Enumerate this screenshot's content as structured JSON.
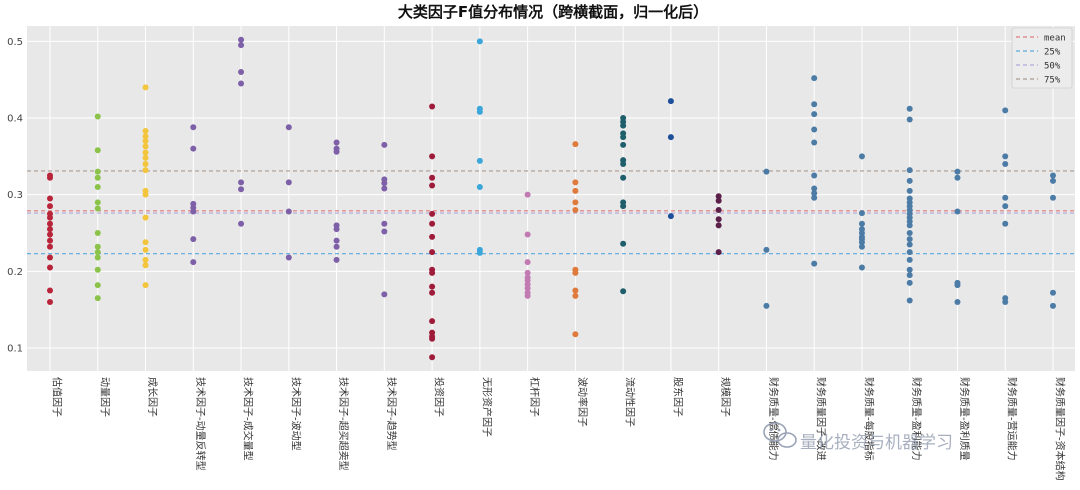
{
  "chart_data": {
    "type": "scatter",
    "title": "大类因子F值分布情况（跨横截面，归一化后）",
    "xlabel": "",
    "ylabel": "",
    "ylim": [
      0.07,
      0.52
    ],
    "yticks": [
      0.1,
      0.2,
      0.3,
      0.4,
      0.5
    ],
    "grid": true,
    "legend_position": "top-right",
    "reference_lines": [
      {
        "name": "mean",
        "value": 0.279,
        "color": "#e07b7b"
      },
      {
        "name": "25%",
        "value": 0.223,
        "color": "#5aa9dc"
      },
      {
        "name": "50%",
        "value": 0.276,
        "color": "#b0a8d8"
      },
      {
        "name": "75%",
        "value": 0.331,
        "color": "#a89a90"
      }
    ],
    "categories": [
      {
        "label": "估值因子",
        "color": "#b8253a",
        "values": [
          0.325,
          0.322,
          0.295,
          0.285,
          0.275,
          0.27,
          0.262,
          0.255,
          0.248,
          0.24,
          0.232,
          0.218,
          0.205,
          0.175,
          0.16
        ]
      },
      {
        "label": "动量因子",
        "color": "#8bc34a",
        "values": [
          0.402,
          0.358,
          0.33,
          0.322,
          0.31,
          0.29,
          0.282,
          0.25,
          0.232,
          0.225,
          0.218,
          0.202,
          0.182,
          0.165
        ]
      },
      {
        "label": "成长因子",
        "color": "#f2c53d",
        "values": [
          0.44,
          0.383,
          0.376,
          0.37,
          0.363,
          0.355,
          0.348,
          0.34,
          0.332,
          0.305,
          0.3,
          0.27,
          0.238,
          0.228,
          0.215,
          0.208,
          0.182
        ]
      },
      {
        "label": "技术因子-动量反转型",
        "color": "#7e60a8",
        "values": [
          0.388,
          0.36,
          0.288,
          0.283,
          0.278,
          0.242,
          0.212
        ]
      },
      {
        "label": "技术因子-成交量型",
        "color": "#7e60a8",
        "values": [
          0.502,
          0.495,
          0.46,
          0.445,
          0.316,
          0.307,
          0.262
        ]
      },
      {
        "label": "技术因子-波动型",
        "color": "#7e60a8",
        "values": [
          0.388,
          0.316,
          0.278,
          0.218
        ]
      },
      {
        "label": "技术因子-超买超卖型",
        "color": "#7e60a8",
        "values": [
          0.368,
          0.36,
          0.356,
          0.26,
          0.255,
          0.24,
          0.232,
          0.215
        ]
      },
      {
        "label": "技术因子-趋势型",
        "color": "#7e60a8",
        "values": [
          0.365,
          0.32,
          0.315,
          0.308,
          0.262,
          0.252,
          0.17
        ]
      },
      {
        "label": "投资因子",
        "color": "#9e1c3a",
        "values": [
          0.415,
          0.35,
          0.322,
          0.312,
          0.275,
          0.262,
          0.245,
          0.225,
          0.202,
          0.198,
          0.18,
          0.172,
          0.135,
          0.12,
          0.115,
          0.112,
          0.088
        ]
      },
      {
        "label": "无形资产因子",
        "color": "#3aa6d9",
        "values": [
          0.5,
          0.412,
          0.408,
          0.344,
          0.31,
          0.228,
          0.224
        ]
      },
      {
        "label": "杠杆因子",
        "color": "#c27ab3",
        "values": [
          0.3,
          0.248,
          0.212,
          0.198,
          0.192,
          0.188,
          0.183,
          0.178,
          0.172,
          0.168
        ]
      },
      {
        "label": "波动率因子",
        "color": "#e07a3c",
        "values": [
          0.366,
          0.316,
          0.305,
          0.29,
          0.28,
          0.202,
          0.198,
          0.175,
          0.168,
          0.118
        ]
      },
      {
        "label": "流动性因子",
        "color": "#1f5e6b",
        "values": [
          0.4,
          0.395,
          0.39,
          0.38,
          0.375,
          0.365,
          0.345,
          0.34,
          0.322,
          0.29,
          0.285,
          0.236,
          0.174
        ]
      },
      {
        "label": "股东因子",
        "color": "#1e4f9a",
        "values": [
          0.422,
          0.375,
          0.272
        ]
      },
      {
        "label": "规模因子",
        "color": "#5b1f4a",
        "values": [
          0.298,
          0.292,
          0.28,
          0.268,
          0.26,
          0.225
        ]
      },
      {
        "label": "财务质量-偿债能力",
        "color": "#4c7ca6",
        "values": [
          0.33,
          0.228,
          0.155
        ]
      },
      {
        "label": "财务质量因子-改进",
        "color": "#4c7ca6",
        "values": [
          0.452,
          0.418,
          0.405,
          0.385,
          0.368,
          0.325,
          0.308,
          0.302,
          0.296,
          0.21
        ]
      },
      {
        "label": "财务质量-每股指标",
        "color": "#4c7ca6",
        "values": [
          0.35,
          0.276,
          0.262,
          0.255,
          0.25,
          0.245,
          0.242,
          0.238,
          0.232,
          0.205
        ]
      },
      {
        "label": "财务质量-盈利能力",
        "color": "#4c7ca6",
        "values": [
          0.412,
          0.398,
          0.332,
          0.318,
          0.305,
          0.295,
          0.29,
          0.285,
          0.28,
          0.275,
          0.27,
          0.265,
          0.26,
          0.25,
          0.242,
          0.235,
          0.225,
          0.215,
          0.202,
          0.195,
          0.185,
          0.162
        ]
      },
      {
        "label": "财务质量-盈利质量",
        "color": "#4c7ca6",
        "values": [
          0.33,
          0.322,
          0.278,
          0.185,
          0.182,
          0.16
        ]
      },
      {
        "label": "财务质量-营运能力",
        "color": "#4c7ca6",
        "values": [
          0.41,
          0.35,
          0.34,
          0.296,
          0.285,
          0.262,
          0.165,
          0.16
        ]
      },
      {
        "label": "财务质量因子-资本结构",
        "color": "#4c7ca6",
        "values": [
          0.325,
          0.318,
          0.296,
          0.172,
          0.155
        ]
      }
    ]
  },
  "watermark": "量化投资与机器学习"
}
